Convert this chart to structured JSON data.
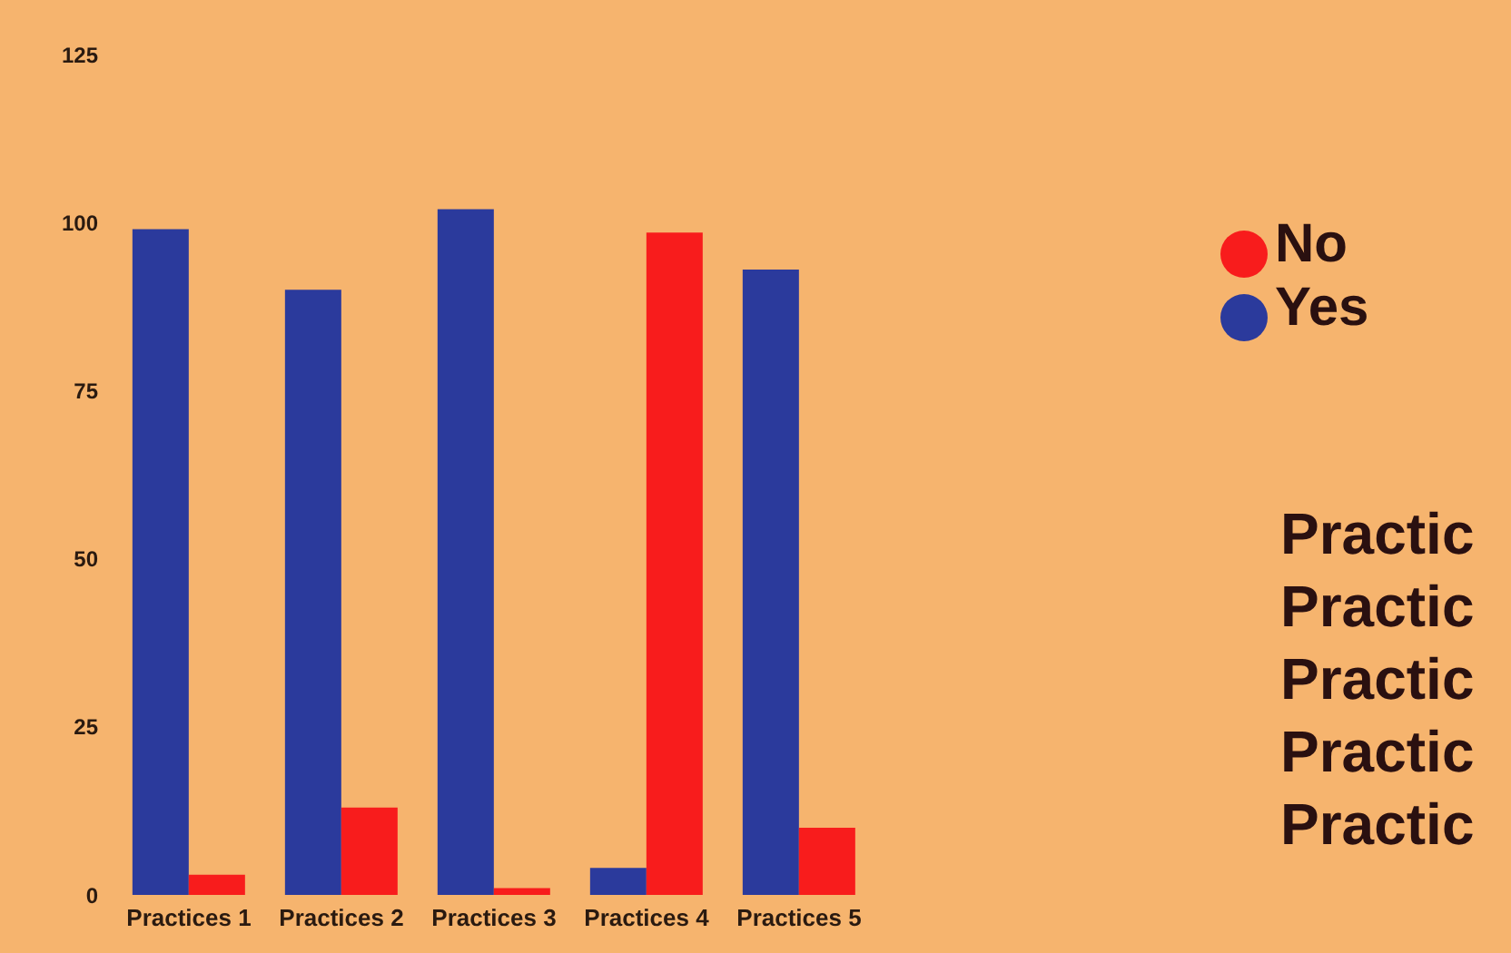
{
  "chart_data": {
    "type": "bar",
    "categories": [
      "Practices 1",
      "Practices 2",
      "Practices 3",
      "Practices 4",
      "Practices 5"
    ],
    "series": [
      {
        "name": "Yes",
        "color": "#2b3a9c",
        "values": [
          99,
          90,
          102,
          4,
          93
        ]
      },
      {
        "name": "No",
        "color": "#f81c1c",
        "values": [
          3,
          13,
          1,
          98.5,
          10
        ]
      }
    ],
    "ylim": [
      0,
      125
    ],
    "yticks": [
      0,
      25,
      50,
      75,
      100,
      125
    ],
    "grid": false,
    "legend": "right",
    "annotations": [
      "Practic",
      "Practic",
      "Practic",
      "Practic",
      "Practic"
    ]
  }
}
